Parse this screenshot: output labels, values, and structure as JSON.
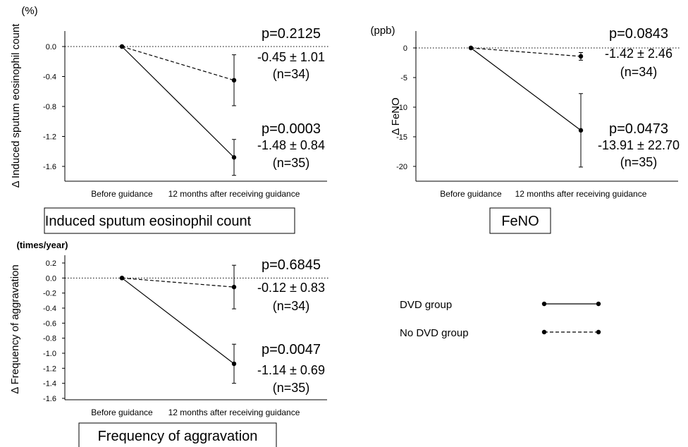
{
  "chart_data": [
    {
      "type": "line",
      "ylabel": "Δ Induced sputum eosinophil count",
      "yunit": "(%)",
      "categories": [
        "Before guidance",
        "12 months after receiving guidance"
      ],
      "ylim": [
        -1.8,
        0.2
      ],
      "yticks": [
        0.0,
        -0.4,
        -0.8,
        -1.2,
        -1.6
      ],
      "ytick_labels": [
        "0.0",
        "-0.4",
        "-0.8",
        "-1.2",
        "-1.6"
      ],
      "panel_label": "Induced sputum eosinophil count",
      "series": [
        {
          "name": "DVD group",
          "values": [
            0,
            -1.48
          ],
          "err": [
            0,
            0.24
          ],
          "p": "p=0.0003",
          "stat": "-1.48 ± 0.84",
          "n": "(n=35)"
        },
        {
          "name": "No DVD group",
          "values": [
            0,
            -0.45
          ],
          "err": [
            0,
            0.34
          ],
          "p": "p=0.2125",
          "stat": "-0.45 ± 1.01",
          "n": "(n=34)"
        }
      ]
    },
    {
      "type": "line",
      "ylabel": "Δ FeNO",
      "yunit": "(ppb)",
      "categories": [
        "Before guidance",
        "12 months after receiving guidance"
      ],
      "ylim": [
        -22,
        2
      ],
      "yticks": [
        0,
        -5,
        -10,
        -15,
        -20
      ],
      "ytick_labels": [
        "0",
        "-5",
        "-10",
        "-15",
        "-20"
      ],
      "panel_label": "FeNO",
      "series": [
        {
          "name": "DVD group",
          "values": [
            0,
            -13.91
          ],
          "err": [
            0,
            6.2
          ],
          "p": "p=0.0473",
          "stat": "-13.91 ± 22.70",
          "n": "(n=35)"
        },
        {
          "name": "No DVD group",
          "values": [
            0,
            -1.42
          ],
          "err": [
            0,
            0.65
          ],
          "p": "p=0.0843",
          "stat": "-1.42 ± 2.46",
          "n": "(n=34)"
        }
      ]
    },
    {
      "type": "line",
      "ylabel": "Δ Frequency of aggravation",
      "yunit": "(times/year)",
      "categories": [
        "Before guidance",
        "12 months after receiving guidance"
      ],
      "ylim": [
        -1.6,
        0.2
      ],
      "yticks": [
        0.2,
        0.0,
        -0.2,
        -0.4,
        -0.6,
        -0.8,
        -1.0,
        -1.2,
        -1.4,
        -1.6
      ],
      "ytick_labels": [
        "0.2",
        "0.0",
        "-0.2",
        "-0.4",
        "-0.6",
        "-0.8",
        "-1.0",
        "-1.2",
        "-1.4",
        "-1.6"
      ],
      "panel_label": "Frequency of aggravation",
      "series": [
        {
          "name": "DVD group",
          "values": [
            0,
            -1.14
          ],
          "err": [
            0,
            0.26
          ],
          "p": "p=0.0047",
          "stat": "-1.14 ± 0.69",
          "n": "(n=35)"
        },
        {
          "name": "No DVD group",
          "values": [
            0,
            -0.12
          ],
          "err": [
            0,
            0.29
          ],
          "p": "p=0.6845",
          "stat": "-0.12 ± 0.83",
          "n": "(n=34)"
        }
      ]
    }
  ],
  "legend": [
    {
      "label": "DVD group",
      "style": "solid"
    },
    {
      "label": "No DVD group",
      "style": "dashed"
    }
  ]
}
